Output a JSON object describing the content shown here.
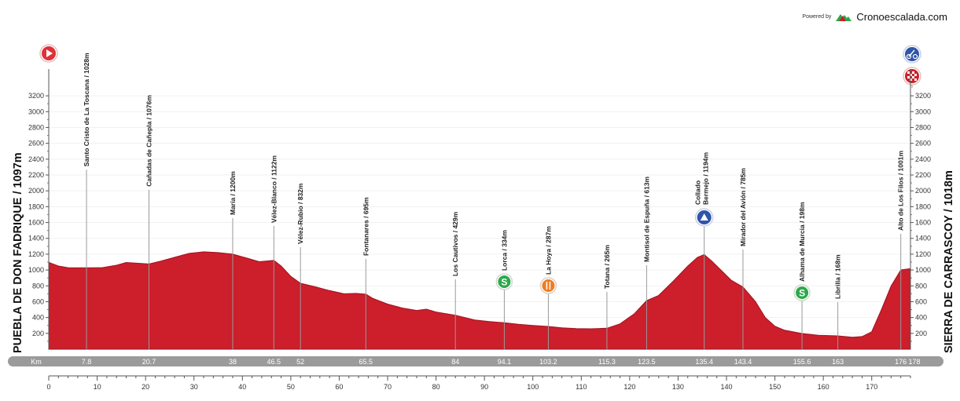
{
  "brand": {
    "powered_by": "Powered by",
    "name": "Cronoescalada.com",
    "logo_icon": "mountain-logo-icon"
  },
  "colors": {
    "profile": "#cc1e2b",
    "profile_dark": "#9e1420",
    "km_bar": "#9b9b9b",
    "accent_green": "#2da84a",
    "accent_orange": "#ee7d22",
    "accent_blue": "#2f55a8"
  },
  "chart_data": {
    "type": "area",
    "start_label": "PUEBLA DE DON FADRIQUE / 1097m",
    "finish_label": "SIERRA DE CARRASCOY / 1018m",
    "y_ticks": [
      200,
      400,
      600,
      800,
      1000,
      1200,
      1400,
      1600,
      1800,
      2000,
      2200,
      2400,
      2600,
      2800,
      3000,
      3200
    ],
    "x_ticks": [
      0,
      10,
      20,
      30,
      40,
      50,
      60,
      70,
      80,
      90,
      100,
      110,
      120,
      130,
      140,
      150,
      160,
      170
    ],
    "xlim": [
      0,
      178
    ],
    "ylim": [
      0,
      3300
    ],
    "km_bar_label": "Km",
    "profile": [
      [
        0,
        1097
      ],
      [
        2,
        1050
      ],
      [
        4,
        1030
      ],
      [
        7.8,
        1028
      ],
      [
        11,
        1030
      ],
      [
        14,
        1060
      ],
      [
        16,
        1095
      ],
      [
        20.7,
        1076
      ],
      [
        23,
        1110
      ],
      [
        26,
        1160
      ],
      [
        29,
        1210
      ],
      [
        32,
        1230
      ],
      [
        35,
        1220
      ],
      [
        38,
        1200
      ],
      [
        41,
        1150
      ],
      [
        43.5,
        1105
      ],
      [
        46.5,
        1122
      ],
      [
        48,
        1050
      ],
      [
        50,
        920
      ],
      [
        52,
        832
      ],
      [
        55,
        790
      ],
      [
        58,
        740
      ],
      [
        61,
        700
      ],
      [
        63.5,
        705
      ],
      [
        65.5,
        695
      ],
      [
        67,
        640
      ],
      [
        70,
        570
      ],
      [
        73,
        520
      ],
      [
        76,
        490
      ],
      [
        78,
        505
      ],
      [
        80,
        470
      ],
      [
        84,
        429
      ],
      [
        88,
        370
      ],
      [
        91,
        350
      ],
      [
        94.1,
        334
      ],
      [
        97,
        315
      ],
      [
        100,
        300
      ],
      [
        103.2,
        287
      ],
      [
        106,
        270
      ],
      [
        109,
        260
      ],
      [
        112,
        258
      ],
      [
        115.3,
        265
      ],
      [
        118,
        320
      ],
      [
        121,
        450
      ],
      [
        123.5,
        613
      ],
      [
        126,
        680
      ],
      [
        129,
        860
      ],
      [
        132,
        1050
      ],
      [
        134,
        1160
      ],
      [
        135.4,
        1194
      ],
      [
        137,
        1110
      ],
      [
        139,
        990
      ],
      [
        141,
        870
      ],
      [
        143.4,
        785
      ],
      [
        146,
        600
      ],
      [
        148,
        400
      ],
      [
        150,
        290
      ],
      [
        152,
        240
      ],
      [
        155.6,
        198
      ],
      [
        159,
        175
      ],
      [
        163,
        168
      ],
      [
        166,
        152
      ],
      [
        168,
        160
      ],
      [
        170,
        220
      ],
      [
        172,
        500
      ],
      [
        174,
        800
      ],
      [
        176,
        1001
      ],
      [
        178,
        1018
      ]
    ],
    "waypoints": [
      {
        "km": 7.8,
        "km_label": "7.8",
        "name": "Santo Cristo de La Toscana / 1028m"
      },
      {
        "km": 20.7,
        "km_label": "20.7",
        "name": "Cañadas de Cañepla / 1076m"
      },
      {
        "km": 38,
        "km_label": "38",
        "name": "María / 1200m"
      },
      {
        "km": 46.5,
        "km_label": "46.5",
        "name": "Vélez-Blanco / 1122m"
      },
      {
        "km": 52,
        "km_label": "52",
        "name": "Vélez-Rubio / 832m"
      },
      {
        "km": 65.5,
        "km_label": "65.5",
        "name": "Fontanares / 695m"
      },
      {
        "km": 84,
        "km_label": "84",
        "name": "Los Cautivos / 429m"
      },
      {
        "km": 94.1,
        "km_label": "94.1",
        "name": "Lorca / 334m",
        "icon": "sprint-icon"
      },
      {
        "km": 103.2,
        "km_label": "103.2",
        "name": "La Hoya / 287m",
        "icon": "feed-zone-icon"
      },
      {
        "km": 115.3,
        "km_label": "115.3",
        "name": "Totana / 265m"
      },
      {
        "km": 123.5,
        "km_label": "123.5",
        "name": "Montisol de Espuña / 613m"
      },
      {
        "km": 135.4,
        "km_label": "135.4",
        "name": "Collado Bermejo / 1194m",
        "name_lines": [
          "Collado",
          "Bermejo / 1194m"
        ],
        "icon": "mountain-climb-icon"
      },
      {
        "km": 143.4,
        "km_label": "143.4",
        "name": "Mirador del Avión / 785m"
      },
      {
        "km": 155.6,
        "km_label": "155.6",
        "name": "Alhama de Murcia / 198m",
        "icon": "sprint-icon"
      },
      {
        "km": 163,
        "km_label": "163",
        "name": "Librilla / 168m"
      },
      {
        "km": 176,
        "km_label": "176",
        "name": "Alto de Los Filos / 1001m"
      }
    ],
    "end_km_label": "178",
    "markers": {
      "start": "start-icon",
      "climb_finish": "cyclist-climb-icon",
      "finish": "finish-flag-icon"
    }
  }
}
